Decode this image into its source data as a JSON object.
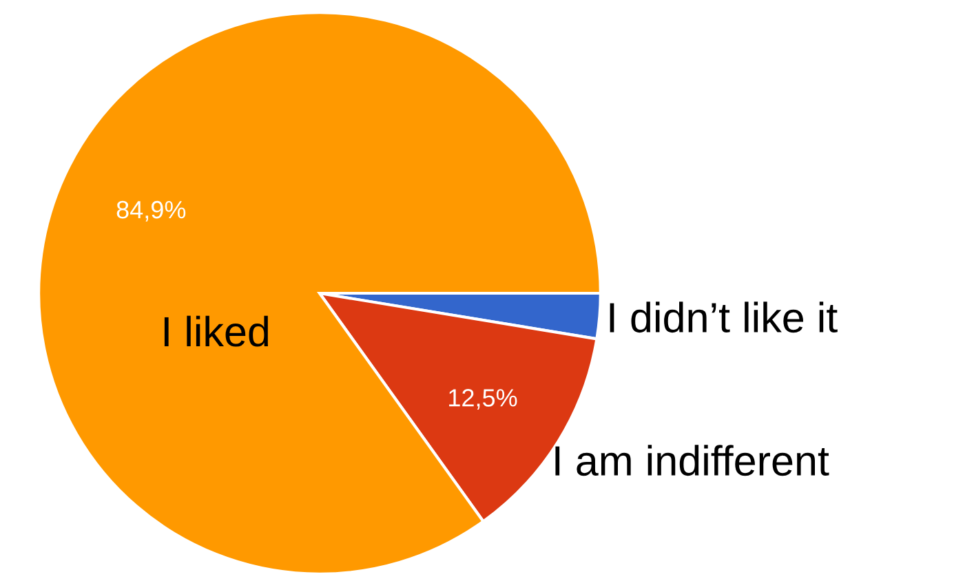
{
  "chart_data": {
    "type": "pie",
    "categories": [
      "I didn’t like it",
      "I am indifferent",
      "I liked"
    ],
    "values": [
      2.6,
      12.5,
      84.9
    ],
    "value_labels": [
      null,
      "12,5%",
      "84,9%"
    ],
    "colors": [
      "#3366cc",
      "#dc3912",
      "#ff9900"
    ],
    "legend": false
  }
}
